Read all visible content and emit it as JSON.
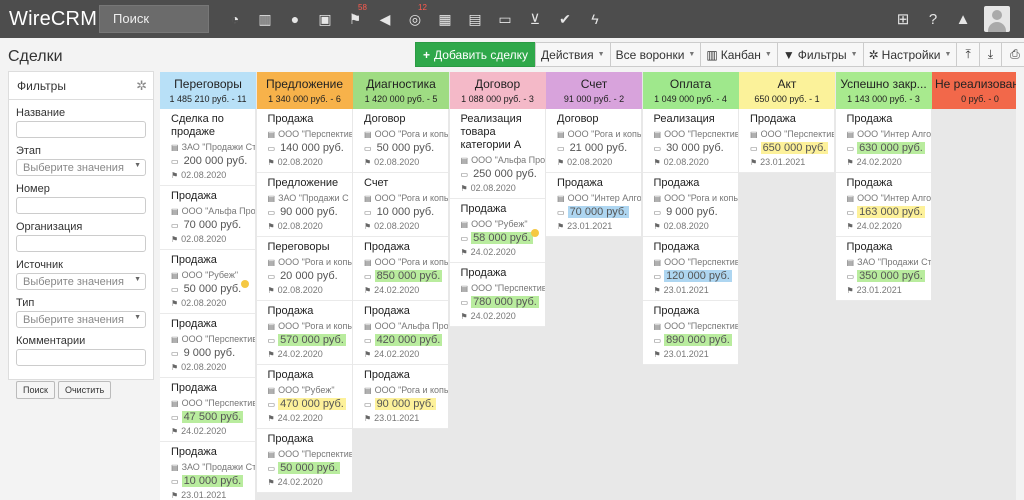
{
  "app": {
    "logo": "WireCRM",
    "search_placeholder": "Поиск"
  },
  "top_icons": [
    {
      "icon": "dashboard-icon",
      "glyph": "◔",
      "badge": ""
    },
    {
      "icon": "building-icon",
      "glyph": "▥",
      "badge": ""
    },
    {
      "icon": "user-icon",
      "glyph": "●",
      "badge": ""
    },
    {
      "icon": "briefcase-icon",
      "glyph": "▣",
      "badge": ""
    },
    {
      "icon": "flag-icon",
      "glyph": "⚑",
      "badge": "58"
    },
    {
      "icon": "megaphone-icon",
      "glyph": "◀",
      "badge": ""
    },
    {
      "icon": "lifebuoy-icon",
      "glyph": "◎",
      "badge": "12"
    },
    {
      "icon": "barcode-icon",
      "glyph": "▦",
      "badge": ""
    },
    {
      "icon": "storage-icon",
      "glyph": "▤",
      "badge": ""
    },
    {
      "icon": "money-icon",
      "glyph": "▭",
      "badge": ""
    },
    {
      "icon": "cart-icon",
      "glyph": "⊻",
      "badge": ""
    },
    {
      "icon": "check-icon",
      "glyph": "✔",
      "badge": ""
    },
    {
      "icon": "bolt-icon",
      "glyph": "ϟ",
      "badge": ""
    }
  ],
  "right_icons": [
    {
      "icon": "plus-square-icon",
      "glyph": "⊞"
    },
    {
      "icon": "help-icon",
      "glyph": "?"
    },
    {
      "icon": "bell-icon",
      "glyph": "▲"
    }
  ],
  "page": {
    "title": "Сделки"
  },
  "toolbar": {
    "add_label": "Добавить сделку",
    "actions_label": "Действия",
    "funnels_label": "Все воронки",
    "kanban_label": "Канбан",
    "filters_label": "Фильтры",
    "settings_label": "Настройки"
  },
  "filters": {
    "title": "Фильтры",
    "name_label": "Название",
    "stage_label": "Этап",
    "stage_placeholder": "Выберите значения",
    "number_label": "Номер",
    "org_label": "Организация",
    "source_label": "Источник",
    "source_placeholder": "Выберите значения",
    "type_label": "Тип",
    "type_placeholder": "Выберите значения",
    "comments_label": "Комментарии",
    "search_button": "Поиск",
    "clear_button": "Очистить"
  },
  "columns": [
    {
      "name": "Переговоры",
      "summary": "1 485 210 руб. - 11",
      "color": "#b8e0f7",
      "cards": [
        {
          "title": "Сделка по продаже",
          "org": "ЗАО \"Продажи Ст.",
          "amount": "200 000 руб.",
          "hl": "",
          "date": "02.08.2020",
          "dot": false
        },
        {
          "title": "Продажа",
          "org": "ООО \"Альфа Прое.",
          "amount": "70 000 руб.",
          "hl": "",
          "date": "02.08.2020",
          "dot": false
        },
        {
          "title": "Продажа",
          "org": "ООО \"Рубеж\"",
          "amount": "50 000 руб.",
          "hl": "",
          "date": "02.08.2020",
          "dot": true
        },
        {
          "title": "Продажа",
          "org": "ООО \"Перспектива",
          "amount": "9 000 руб.",
          "hl": "",
          "date": "02.08.2020",
          "dot": false
        },
        {
          "title": "Продажа",
          "org": "ООО \"Перспектива",
          "amount": "47 500 руб.",
          "hl": "#b9ec9e",
          "date": "24.02.2020",
          "dot": false
        },
        {
          "title": "Продажа",
          "org": "ЗАО \"Продажи Ст.",
          "amount": "10 000 руб.",
          "hl": "#b9ec9e",
          "date": "23.01.2021",
          "dot": false
        }
      ]
    },
    {
      "name": "Предложение",
      "summary": "1 340 000 руб. - 6",
      "color": "#f7b24a",
      "cards": [
        {
          "title": "Продажа",
          "org": "ООО \"Перспектива",
          "amount": "140 000 руб.",
          "hl": "",
          "date": "02.08.2020",
          "dot": false
        },
        {
          "title": "Предложение",
          "org": "ЗАО \"Продажи С",
          "amount": "90 000 руб.",
          "hl": "",
          "date": "02.08.2020",
          "dot": false
        },
        {
          "title": "Переговоры",
          "org": "ООО \"Рога и копы",
          "amount": "20 000 руб.",
          "hl": "",
          "date": "02.08.2020",
          "dot": false
        },
        {
          "title": "Продажа",
          "org": "ООО \"Рога и копы",
          "amount": "570 000 руб.",
          "hl": "#b9ec9e",
          "date": "24.02.2020",
          "dot": false
        },
        {
          "title": "Продажа",
          "org": "ООО \"Рубеж\"",
          "amount": "470 000 руб.",
          "hl": "#fdf19a",
          "date": "24.02.2020",
          "dot": false
        },
        {
          "title": "Продажа",
          "org": "ООО \"Перспектива",
          "amount": "50 000 руб.",
          "hl": "#b9ec9e",
          "date": "24.02.2020",
          "dot": false
        }
      ]
    },
    {
      "name": "Диагностика",
      "summary": "1 420 000 руб. - 5",
      "color": "#9fdc83",
      "cards": [
        {
          "title": "Договор",
          "org": "ООО \"Рога и копы.",
          "amount": "50 000 руб.",
          "hl": "",
          "date": "02.08.2020",
          "dot": false
        },
        {
          "title": "Счет",
          "org": "ООО \"Рога и копы.",
          "amount": "10 000 руб.",
          "hl": "",
          "date": "02.08.2020",
          "dot": false
        },
        {
          "title": "Продажа",
          "org": "ООО \"Рога и копы",
          "amount": "850 000 руб.",
          "hl": "#b9ec9e",
          "date": "24.02.2020",
          "dot": false
        },
        {
          "title": "Продажа",
          "org": "ООО \"Альфа Прое.",
          "amount": "420 000 руб.",
          "hl": "#b9ec9e",
          "date": "24.02.2020",
          "dot": false
        },
        {
          "title": "Продажа",
          "org": "ООО \"Рога и копы.",
          "amount": "90 000 руб.",
          "hl": "#fdf19a",
          "date": "23.01.2021",
          "dot": false
        }
      ]
    },
    {
      "name": "Договор",
      "summary": "1 088 000 руб. - 3",
      "color": "#f4b9c8",
      "cards": [
        {
          "title": "Реализация товара категории А",
          "org": "ООО \"Альфа Прое.",
          "amount": "250 000 руб.",
          "hl": "",
          "date": "02.08.2020",
          "dot": false
        },
        {
          "title": "Продажа",
          "org": "ООО \"Рубеж\"",
          "amount": "58 000 руб.",
          "hl": "#b9ec9e",
          "date": "24.02.2020",
          "dot": true
        },
        {
          "title": "Продажа",
          "org": "ООО \"Перспектива",
          "amount": "780 000 руб.",
          "hl": "#b9ec9e",
          "date": "24.02.2020",
          "dot": false
        }
      ]
    },
    {
      "name": "Счет",
      "summary": "91 000 руб. - 2",
      "color": "#d8a3dc",
      "cards": [
        {
          "title": "Договор",
          "org": "ООО \"Рога и копы.",
          "amount": "21 000 руб.",
          "hl": "",
          "date": "02.08.2020",
          "dot": false
        },
        {
          "title": "Продажа",
          "org": "ООО \"Интер Алго.",
          "amount": "70 000 руб.",
          "hl": "#aed6f1",
          "date": "23.01.2021",
          "dot": false
        }
      ]
    },
    {
      "name": "Оплата",
      "summary": "1 049 000 руб. - 4",
      "color": "#9fe88c",
      "cards": [
        {
          "title": "Реализация",
          "org": "ООО \"Перспектива",
          "amount": "30 000 руб.",
          "hl": "",
          "date": "02.08.2020",
          "dot": false
        },
        {
          "title": "Продажа",
          "org": "ООО \"Рога и копы.",
          "amount": "9 000 руб.",
          "hl": "",
          "date": "02.08.2020",
          "dot": false
        },
        {
          "title": "Продажа",
          "org": "ООО \"Перспектива",
          "amount": "120 000 руб.",
          "hl": "#aed6f1",
          "date": "23.01.2021",
          "dot": false
        },
        {
          "title": "Продажа",
          "org": "ООО \"Перспектива",
          "amount": "890 000 руб.",
          "hl": "#b9ec9e",
          "date": "23.01.2021",
          "dot": false
        }
      ]
    },
    {
      "name": "Акт",
      "summary": "650 000 руб. - 1",
      "color": "#fbf29a",
      "cards": [
        {
          "title": "Продажа",
          "org": "ООО \"Перспектива",
          "amount": "650 000 руб.",
          "hl": "#fdf19a",
          "date": "23.01.2021",
          "dot": false
        }
      ]
    },
    {
      "name": "Успешно закр...",
      "summary": "1 143 000 руб. - 3",
      "color": "#a8ea8e",
      "cards": [
        {
          "title": "Продажа",
          "org": "ООО \"Интер Алго.",
          "amount": "630 000 руб.",
          "hl": "#b9ec9e",
          "date": "24.02.2020",
          "dot": false
        },
        {
          "title": "Продажа",
          "org": "ООО \"Интер Алго.",
          "amount": "163 000 руб.",
          "hl": "#fdf19a",
          "date": "24.02.2020",
          "dot": false
        },
        {
          "title": "Продажа",
          "org": "ЗАО \"Продажи Ст.",
          "amount": "350 000 руб.",
          "hl": "#b9ec9e",
          "date": "23.01.2021",
          "dot": false
        }
      ]
    },
    {
      "name": "Не реализовано",
      "summary": "0 руб. - 0",
      "color": "#f2684a",
      "cards": []
    }
  ]
}
